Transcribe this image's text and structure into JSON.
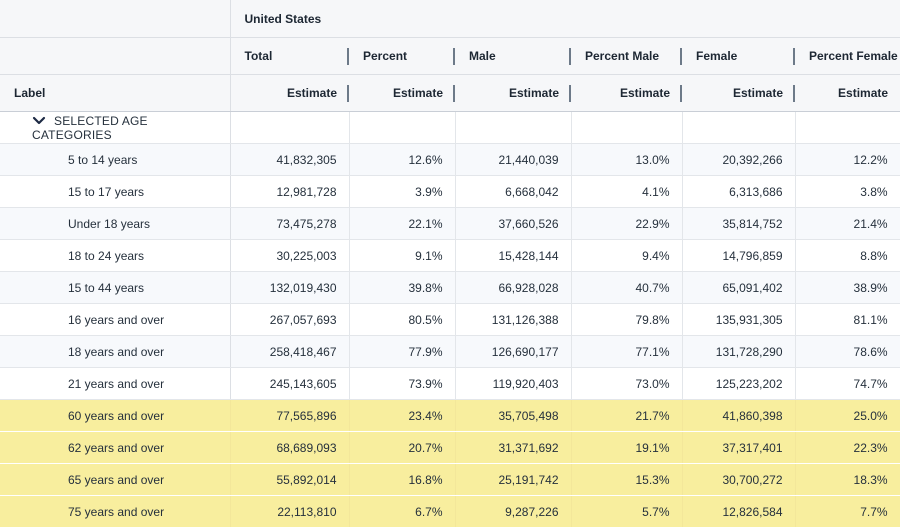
{
  "header": {
    "group_title": "United States",
    "label_header": "Label",
    "columns": [
      "Total",
      "Percent",
      "Male",
      "Percent Male",
      "Female",
      "Percent Female"
    ],
    "subheader": "Estimate"
  },
  "category": {
    "label": "SELECTED AGE CATEGORIES",
    "icon": "chevron-down-icon"
  },
  "rows": [
    {
      "label": "5 to 14 years",
      "total": "41,832,305",
      "percent": "12.6%",
      "male": "21,440,039",
      "pct_male": "13.0%",
      "female": "20,392,266",
      "pct_female": "12.2%",
      "highlighted": false
    },
    {
      "label": "15 to 17 years",
      "total": "12,981,728",
      "percent": "3.9%",
      "male": "6,668,042",
      "pct_male": "4.1%",
      "female": "6,313,686",
      "pct_female": "3.8%",
      "highlighted": false
    },
    {
      "label": "Under 18 years",
      "total": "73,475,278",
      "percent": "22.1%",
      "male": "37,660,526",
      "pct_male": "22.9%",
      "female": "35,814,752",
      "pct_female": "21.4%",
      "highlighted": false
    },
    {
      "label": "18 to 24 years",
      "total": "30,225,003",
      "percent": "9.1%",
      "male": "15,428,144",
      "pct_male": "9.4%",
      "female": "14,796,859",
      "pct_female": "8.8%",
      "highlighted": false
    },
    {
      "label": "15 to 44 years",
      "total": "132,019,430",
      "percent": "39.8%",
      "male": "66,928,028",
      "pct_male": "40.7%",
      "female": "65,091,402",
      "pct_female": "38.9%",
      "highlighted": false
    },
    {
      "label": "16 years and over",
      "total": "267,057,693",
      "percent": "80.5%",
      "male": "131,126,388",
      "pct_male": "79.8%",
      "female": "135,931,305",
      "pct_female": "81.1%",
      "highlighted": false
    },
    {
      "label": "18 years and over",
      "total": "258,418,467",
      "percent": "77.9%",
      "male": "126,690,177",
      "pct_male": "77.1%",
      "female": "131,728,290",
      "pct_female": "78.6%",
      "highlighted": false
    },
    {
      "label": "21 years and over",
      "total": "245,143,605",
      "percent": "73.9%",
      "male": "119,920,403",
      "pct_male": "73.0%",
      "female": "125,223,202",
      "pct_female": "74.7%",
      "highlighted": false
    },
    {
      "label": "60 years and over",
      "total": "77,565,896",
      "percent": "23.4%",
      "male": "35,705,498",
      "pct_male": "21.7%",
      "female": "41,860,398",
      "pct_female": "25.0%",
      "highlighted": true
    },
    {
      "label": "62 years and over",
      "total": "68,689,093",
      "percent": "20.7%",
      "male": "31,371,692",
      "pct_male": "19.1%",
      "female": "37,317,401",
      "pct_female": "22.3%",
      "highlighted": true
    },
    {
      "label": "65 years and over",
      "total": "55,892,014",
      "percent": "16.8%",
      "male": "25,191,742",
      "pct_male": "15.3%",
      "female": "30,700,272",
      "pct_female": "18.3%",
      "highlighted": true
    },
    {
      "label": "75 years and over",
      "total": "22,113,810",
      "percent": "6.7%",
      "male": "9,287,226",
      "pct_male": "5.7%",
      "female": "12,826,584",
      "pct_female": "7.7%",
      "highlighted": true
    }
  ],
  "colors": {
    "highlight": "#f8ee9e",
    "header_bg": "#f6f7f9",
    "alt_row_bg": "#f7f9fc",
    "separator": "#6d7a89"
  }
}
